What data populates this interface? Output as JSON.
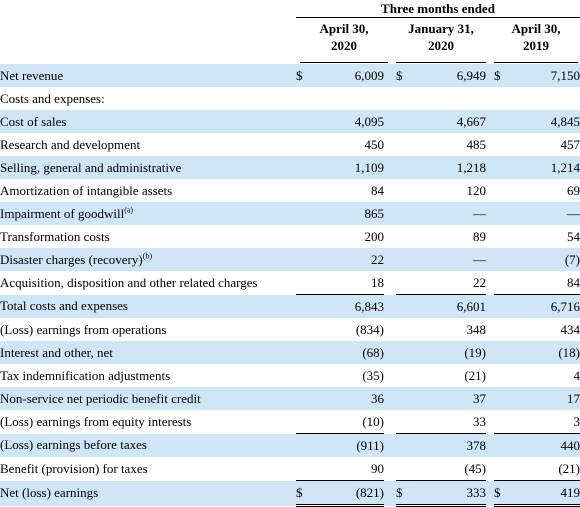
{
  "header": {
    "period": "Three months ended",
    "columns": [
      {
        "line1": "April 30,",
        "line2": "2020"
      },
      {
        "line1": "January 31,",
        "line2": "2020"
      },
      {
        "line1": "April 30,",
        "line2": "2019"
      }
    ]
  },
  "rows": [
    {
      "label": "Net revenue",
      "sup": "",
      "indent": 0,
      "shade": true,
      "currency": "$",
      "values": [
        "6,009",
        "6,949",
        "7,150"
      ]
    },
    {
      "label": "Costs and expenses:",
      "sup": "",
      "indent": 0,
      "shade": false,
      "currency": "",
      "values": [
        "",
        "",
        ""
      ]
    },
    {
      "label": "Cost of sales",
      "sup": "",
      "indent": 1,
      "shade": true,
      "currency": "",
      "values": [
        "4,095",
        "4,667",
        "4,845"
      ]
    },
    {
      "label": "Research and development",
      "sup": "",
      "indent": 1,
      "shade": false,
      "currency": "",
      "values": [
        "450",
        "485",
        "457"
      ]
    },
    {
      "label": "Selling, general and administrative",
      "sup": "",
      "indent": 1,
      "shade": true,
      "currency": "",
      "values": [
        "1,109",
        "1,218",
        "1,214"
      ]
    },
    {
      "label": "Amortization of intangible assets",
      "sup": "",
      "indent": 1,
      "shade": false,
      "currency": "",
      "values": [
        "84",
        "120",
        "69"
      ]
    },
    {
      "label": "Impairment of goodwill",
      "sup": "(a)",
      "indent": 1,
      "shade": true,
      "currency": "",
      "values": [
        "865",
        "—",
        "—"
      ]
    },
    {
      "label": "Transformation costs",
      "sup": "",
      "indent": 1,
      "shade": false,
      "currency": "",
      "values": [
        "200",
        "89",
        "54"
      ]
    },
    {
      "label": "Disaster charges (recovery)",
      "sup": "(b)",
      "indent": 1,
      "shade": true,
      "currency": "",
      "values": [
        "22",
        "—",
        "(7)"
      ]
    },
    {
      "label": "Acquisition, disposition and other related charges",
      "sup": "",
      "indent": 1,
      "shade": false,
      "currency": "",
      "values": [
        "18",
        "22",
        "84"
      ]
    },
    {
      "label": "Total costs and expenses",
      "sup": "",
      "indent": 2,
      "shade": true,
      "currency": "",
      "values": [
        "6,843",
        "6,601",
        "6,716"
      ],
      "top_border": true
    },
    {
      "label": "(Loss) earnings from operations",
      "sup": "",
      "indent": 0,
      "shade": false,
      "currency": "",
      "values": [
        "(834)",
        "348",
        "434"
      ]
    },
    {
      "label": "Interest and other, net",
      "sup": "",
      "indent": 0,
      "shade": true,
      "currency": "",
      "values": [
        "(68)",
        "(19)",
        "(18)"
      ]
    },
    {
      "label": "Tax indemnification adjustments",
      "sup": "",
      "indent": 0,
      "shade": false,
      "currency": "",
      "values": [
        "(35)",
        "(21)",
        "4"
      ]
    },
    {
      "label": "Non-service net periodic benefit credit",
      "sup": "",
      "indent": 0,
      "shade": true,
      "currency": "",
      "values": [
        "36",
        "37",
        "17"
      ]
    },
    {
      "label": "(Loss) earnings from equity interests",
      "sup": "",
      "indent": 0,
      "shade": false,
      "currency": "",
      "values": [
        "(10)",
        "33",
        "3"
      ]
    },
    {
      "label": "(Loss) earnings before taxes",
      "sup": "",
      "indent": 0,
      "shade": true,
      "currency": "",
      "values": [
        "(911)",
        "378",
        "440"
      ],
      "top_border": true
    },
    {
      "label": "Benefit (provision) for taxes",
      "sup": "",
      "indent": 0,
      "shade": false,
      "currency": "",
      "values": [
        "90",
        "(45)",
        "(21)"
      ]
    },
    {
      "label": "Net (loss) earnings",
      "sup": "",
      "indent": 0,
      "shade": true,
      "currency": "$",
      "values": [
        "(821)",
        "333",
        "419"
      ],
      "top_border": true,
      "double_bottom": true
    }
  ]
}
